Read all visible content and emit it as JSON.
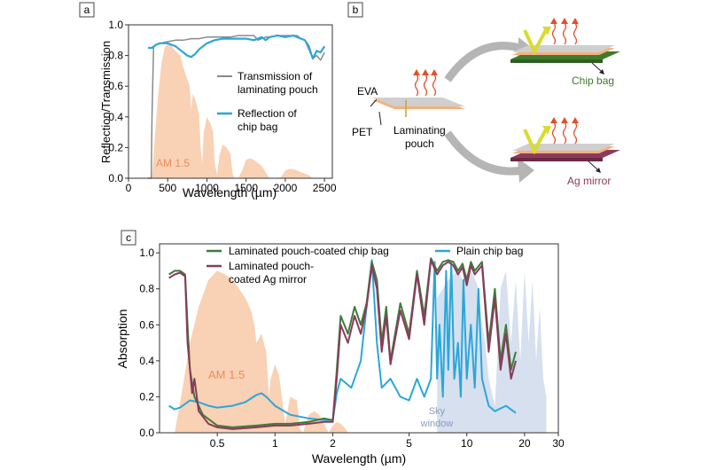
{
  "colors": {
    "am15_fill": "#f8c9a8",
    "am15_text": "#e8905a",
    "sky_fill": "#c8d6ea",
    "sky_text": "#8a9bbf",
    "gray_line": "#8a8a8a",
    "blue_line": "#2aa7d8",
    "green_line": "#3f7a3a",
    "purple_line": "#8a3a5c",
    "chip_bag_layer": "#3f7a2e",
    "ag_mirror_layer": "#8a3a5c",
    "evA_layer": "#c8c8c8",
    "pet_layer": "#f6b07a",
    "arrow_gray": "#b5b5b5",
    "photon_red": "#e0502a",
    "light_yellow": "#e6e83a"
  },
  "panels": {
    "a": {
      "label": "a"
    },
    "b": {
      "label": "b",
      "labels": {
        "eva": "EVA",
        "pet": "PET",
        "laminating_pouch": "Laminating\npouch",
        "laminating_pouch_line1": "Laminating",
        "laminating_pouch_line2": "pouch",
        "chip_bag": "Chip bag",
        "ag_mirror": "Ag mirror"
      }
    },
    "c": {
      "label": "c"
    }
  },
  "chart_data": [
    {
      "id": "a",
      "type": "line",
      "title": "",
      "xlabel": "Wavelength (µm)",
      "ylabel": "Reflection/Transmission",
      "xlim": [
        0,
        2600
      ],
      "ylim": [
        0.0,
        1.0
      ],
      "x_ticks": [
        0,
        500,
        1000,
        1500,
        2000,
        2500
      ],
      "y_ticks": [
        0.0,
        0.2,
        0.4,
        0.6,
        0.8,
        1.0
      ],
      "x_tick_labels": [
        "0",
        "500",
        "1000",
        "1500",
        "2000",
        "2500"
      ],
      "y_tick_labels": [
        "0.0",
        "0.2",
        "0.4",
        "0.6",
        "0.8",
        "1.0"
      ],
      "annotation": "AM 1.5",
      "legend": [
        "Transmission of laminating pouch",
        "Reflection of chip bag"
      ],
      "legend_lines": [
        [
          "Transmission of",
          "laminating pouch"
        ],
        [
          "Reflection of",
          "chip bag"
        ]
      ],
      "series": [
        {
          "name": "Transmission of laminating pouch",
          "color_key": "gray_line",
          "x": [
            250,
            290,
            300,
            320,
            350,
            400,
            500,
            600,
            700,
            800,
            900,
            1000,
            1100,
            1200,
            1300,
            1400,
            1500,
            1600,
            1650,
            1700,
            1750,
            1800,
            1900,
            2000,
            2100,
            2150,
            2200,
            2250,
            2300,
            2350,
            2400,
            2450,
            2500
          ],
          "values": [
            0.0,
            0.0,
            0.4,
            0.86,
            0.87,
            0.88,
            0.89,
            0.9,
            0.9,
            0.91,
            0.91,
            0.92,
            0.92,
            0.92,
            0.92,
            0.93,
            0.93,
            0.93,
            0.9,
            0.91,
            0.92,
            0.92,
            0.93,
            0.93,
            0.93,
            0.93,
            0.91,
            0.9,
            0.84,
            0.78,
            0.8,
            0.77,
            0.82
          ]
        },
        {
          "name": "Reflection of chip bag",
          "color_key": "blue_line",
          "x": [
            250,
            300,
            350,
            400,
            450,
            500,
            550,
            600,
            650,
            700,
            750,
            800,
            850,
            900,
            950,
            1000,
            1100,
            1200,
            1300,
            1400,
            1500,
            1600,
            1700,
            1750,
            1800,
            1900,
            2000,
            2100,
            2150,
            2200,
            2250,
            2300,
            2350,
            2400,
            2450,
            2500
          ],
          "values": [
            0.85,
            0.85,
            0.87,
            0.88,
            0.88,
            0.88,
            0.87,
            0.86,
            0.84,
            0.82,
            0.8,
            0.79,
            0.81,
            0.84,
            0.86,
            0.88,
            0.9,
            0.91,
            0.91,
            0.91,
            0.91,
            0.9,
            0.92,
            0.9,
            0.92,
            0.93,
            0.92,
            0.93,
            0.92,
            0.91,
            0.9,
            0.86,
            0.78,
            0.83,
            0.82,
            0.86
          ]
        }
      ],
      "am15_spectrum": {
        "x": [
          300,
          340,
          380,
          420,
          460,
          500,
          540,
          580,
          620,
          660,
          700,
          740,
          780,
          800,
          820,
          860,
          900,
          920,
          940,
          960,
          1000,
          1050,
          1080,
          1100,
          1130,
          1160,
          1200,
          1250,
          1300,
          1330,
          1360,
          1400,
          1450,
          1500,
          1550,
          1600,
          1650,
          1700,
          1750,
          1800,
          1850,
          1900,
          1950,
          2000,
          2050,
          2100,
          2150,
          2200,
          2250,
          2300,
          2350,
          2400,
          2450,
          2500
        ],
        "values": [
          0.0,
          0.3,
          0.55,
          0.75,
          0.85,
          0.88,
          0.87,
          0.84,
          0.82,
          0.8,
          0.72,
          0.66,
          0.6,
          0.45,
          0.55,
          0.5,
          0.42,
          0.2,
          0.1,
          0.3,
          0.4,
          0.35,
          0.3,
          0.1,
          0.02,
          0.15,
          0.22,
          0.2,
          0.16,
          0.02,
          0.0,
          0.0,
          0.05,
          0.12,
          0.13,
          0.12,
          0.1,
          0.08,
          0.04,
          0.0,
          0.0,
          0.0,
          0.01,
          0.05,
          0.06,
          0.06,
          0.05,
          0.04,
          0.03,
          0.02,
          0.0,
          0.0,
          0.0,
          0.0
        ]
      }
    },
    {
      "id": "c",
      "type": "line",
      "title": "",
      "xlabel": "Wavelength (µm)",
      "ylabel": "Absorption",
      "x_scale": "log",
      "xlim": [
        0.25,
        30
      ],
      "ylim": [
        0.0,
        1.05
      ],
      "x_ticks": [
        0.5,
        1,
        2,
        5,
        10,
        20,
        30
      ],
      "x_tick_labels": [
        "0.5",
        "1",
        "2",
        "5",
        "10",
        "20",
        "30"
      ],
      "y_ticks": [
        0.0,
        0.2,
        0.4,
        0.6,
        0.8,
        1.0
      ],
      "y_tick_labels": [
        "0.0",
        "0.2",
        "0.4",
        "0.6",
        "0.8",
        "1.0"
      ],
      "annotations": {
        "am15": "AM 1.5",
        "sky_window_line1": "Sky",
        "sky_window_line2": "window"
      },
      "legend": [
        "Laminated pouch-coated chip bag",
        "Laminated pouch-coated Ag mirror",
        "Plain chip bag"
      ],
      "legend_lines": [
        [
          "Laminated pouch-coated chip bag"
        ],
        [
          "Laminated pouch-",
          "coated Ag mirror"
        ],
        [
          "Plain chip bag"
        ]
      ],
      "series": [
        {
          "name": "Laminated pouch-coated chip bag",
          "color_key": "green_line",
          "x": [
            0.28,
            0.3,
            0.32,
            0.34,
            0.35,
            0.36,
            0.38,
            0.42,
            0.5,
            0.6,
            0.8,
            1.0,
            1.2,
            1.5,
            1.8,
            2.0,
            2.1,
            2.2,
            2.4,
            2.6,
            2.8,
            3.0,
            3.2,
            3.4,
            3.6,
            3.8,
            4.0,
            4.5,
            5.0,
            5.5,
            6.0,
            6.5,
            7.0,
            7.5,
            8.0,
            8.5,
            9.0,
            9.5,
            10.0,
            10.5,
            11.0,
            12.0,
            13.0,
            14.0,
            15.0,
            16.0,
            17.0,
            18.0
          ],
          "values": [
            0.88,
            0.9,
            0.9,
            0.88,
            0.6,
            0.35,
            0.2,
            0.1,
            0.04,
            0.03,
            0.04,
            0.05,
            0.05,
            0.06,
            0.08,
            0.07,
            0.35,
            0.65,
            0.55,
            0.7,
            0.6,
            0.72,
            0.95,
            0.85,
            0.5,
            0.7,
            0.4,
            0.72,
            0.55,
            0.9,
            0.65,
            0.97,
            0.9,
            0.95,
            0.96,
            0.95,
            0.9,
            0.94,
            0.85,
            0.95,
            0.9,
            0.95,
            0.5,
            0.8,
            0.4,
            0.6,
            0.35,
            0.45
          ]
        },
        {
          "name": "Laminated pouch-coated Ag mirror",
          "color_key": "purple_line",
          "x": [
            0.28,
            0.3,
            0.32,
            0.34,
            0.35,
            0.37,
            0.38,
            0.4,
            0.45,
            0.5,
            0.6,
            0.8,
            1.0,
            1.2,
            1.5,
            1.8,
            2.0,
            2.1,
            2.2,
            2.4,
            2.6,
            2.8,
            3.0,
            3.2,
            3.4,
            3.6,
            3.8,
            4.0,
            4.5,
            5.0,
            5.5,
            6.0,
            6.5,
            7.0,
            7.5,
            8.0,
            8.5,
            9.0,
            9.5,
            10.0,
            10.5,
            11.0,
            12.0,
            13.0,
            14.0,
            15.0,
            16.0,
            17.0,
            18.0
          ],
          "values": [
            0.86,
            0.88,
            0.89,
            0.87,
            0.5,
            0.22,
            0.3,
            0.12,
            0.05,
            0.03,
            0.02,
            0.03,
            0.04,
            0.04,
            0.05,
            0.06,
            0.06,
            0.3,
            0.6,
            0.5,
            0.65,
            0.55,
            0.7,
            0.93,
            0.8,
            0.45,
            0.65,
            0.38,
            0.68,
            0.52,
            0.88,
            0.6,
            0.96,
            0.88,
            0.93,
            0.95,
            0.93,
            0.88,
            0.92,
            0.82,
            0.93,
            0.88,
            0.93,
            0.45,
            0.75,
            0.35,
            0.55,
            0.3,
            0.4
          ]
        },
        {
          "name": "Plain chip bag",
          "color_key": "blue_line",
          "x": [
            0.28,
            0.3,
            0.32,
            0.34,
            0.36,
            0.4,
            0.45,
            0.5,
            0.6,
            0.7,
            0.8,
            0.85,
            0.9,
            1.0,
            1.2,
            1.5,
            1.8,
            2.0,
            2.1,
            2.2,
            2.5,
            2.8,
            3.0,
            3.2,
            3.4,
            3.6,
            4.0,
            4.5,
            5.0,
            5.5,
            6.0,
            6.5,
            6.8,
            7.0,
            7.2,
            7.5,
            7.8,
            8.0,
            8.3,
            8.6,
            9.0,
            9.3,
            9.6,
            10.0,
            10.5,
            11.0,
            11.5,
            12.0,
            13.0,
            14.0,
            16.0,
            18.0
          ],
          "values": [
            0.15,
            0.13,
            0.14,
            0.16,
            0.18,
            0.17,
            0.15,
            0.14,
            0.15,
            0.17,
            0.21,
            0.22,
            0.2,
            0.15,
            0.1,
            0.08,
            0.07,
            0.07,
            0.22,
            0.3,
            0.25,
            0.4,
            0.7,
            0.96,
            0.5,
            0.25,
            0.3,
            0.2,
            0.18,
            0.3,
            0.2,
            0.3,
            0.95,
            0.3,
            0.6,
            0.2,
            0.9,
            0.35,
            0.95,
            0.3,
            0.5,
            0.2,
            0.85,
            0.3,
            0.6,
            0.25,
            0.8,
            0.3,
            0.15,
            0.12,
            0.15,
            0.11
          ]
        }
      ],
      "am15_spectrum": {
        "x": [
          0.3,
          0.33,
          0.36,
          0.4,
          0.45,
          0.5,
          0.55,
          0.6,
          0.65,
          0.7,
          0.75,
          0.78,
          0.8,
          0.85,
          0.9,
          0.93,
          0.95,
          1.0,
          1.05,
          1.1,
          1.13,
          1.2,
          1.3,
          1.35,
          1.4,
          1.5,
          1.6,
          1.7,
          1.8,
          1.9,
          2.0,
          2.1,
          2.2,
          2.3,
          2.4
        ],
        "values": [
          0.0,
          0.25,
          0.5,
          0.7,
          0.85,
          0.9,
          0.88,
          0.85,
          0.8,
          0.75,
          0.68,
          0.6,
          0.5,
          0.55,
          0.45,
          0.2,
          0.3,
          0.38,
          0.32,
          0.15,
          0.05,
          0.2,
          0.18,
          0.02,
          0.0,
          0.1,
          0.12,
          0.1,
          0.05,
          0.0,
          0.04,
          0.06,
          0.05,
          0.03,
          0.0
        ]
      },
      "sky_window_spectrum": {
        "x": [
          7,
          7.5,
          8,
          8.5,
          9,
          9.5,
          10,
          10.5,
          11,
          11.5,
          12,
          12.5,
          13,
          14,
          15,
          16,
          17,
          18,
          19,
          20,
          21,
          22,
          23,
          24,
          25,
          26
        ],
        "values": [
          0.75,
          0.8,
          0.85,
          0.88,
          0.9,
          0.85,
          0.88,
          0.9,
          0.86,
          0.8,
          0.6,
          0.5,
          0.3,
          0.15,
          0.8,
          0.9,
          0.5,
          0.85,
          0.4,
          0.9,
          0.5,
          0.85,
          0.4,
          0.7,
          0.3,
          0.2
        ]
      }
    }
  ]
}
